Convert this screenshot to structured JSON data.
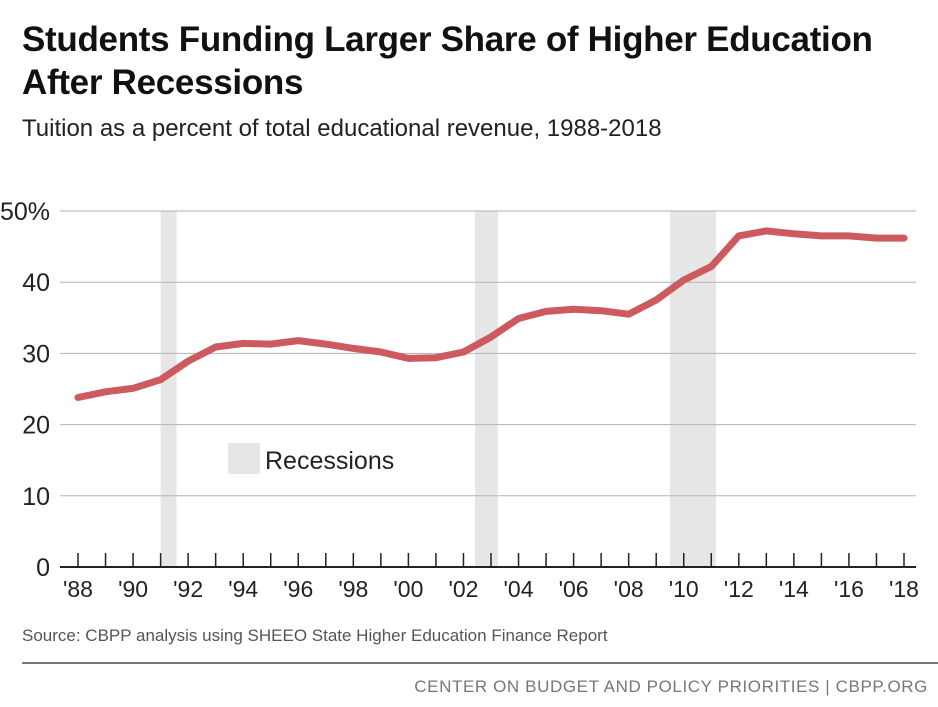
{
  "title": "Students Funding Larger Share of Higher Education After Recessions",
  "subtitle": "Tuition as a percent of total educational revenue, 1988-2018",
  "source": "Source: CBPP analysis using SHEEO State Higher Education Finance Report",
  "footer": "CENTER ON BUDGET AND POLICY PRIORITIES | CBPP.ORG",
  "colors": {
    "line": "#cc5a5e",
    "recession": "#e6e6e6",
    "grid": "#b3b3b3",
    "axis": "#222222"
  },
  "chart_data": {
    "type": "line",
    "title": "Students Funding Larger Share of Higher Education After Recessions",
    "subtitle": "Tuition as a percent of total educational revenue, 1988-2018",
    "x": [
      1988,
      1989,
      1990,
      1991,
      1992,
      1993,
      1994,
      1995,
      1996,
      1997,
      1998,
      1999,
      2000,
      2001,
      2002,
      2003,
      2004,
      2005,
      2006,
      2007,
      2008,
      2009,
      2010,
      2011,
      2012,
      2013,
      2014,
      2015,
      2016,
      2017,
      2018
    ],
    "series": [
      {
        "values": [
          23.8,
          24.6,
          25.1,
          26.3,
          28.9,
          30.9,
          31.4,
          31.3,
          31.8,
          31.3,
          30.7,
          30.2,
          29.3,
          29.4,
          30.2,
          32.3,
          34.9,
          35.9,
          36.2,
          36.0,
          35.5,
          37.5,
          40.3,
          42.2,
          46.5,
          47.2,
          46.8,
          46.5,
          46.5,
          46.2,
          46.2
        ]
      }
    ],
    "xlim": [
      1988,
      2018
    ],
    "ylim": [
      0,
      50
    ],
    "y_ticks": [
      0,
      10,
      20,
      30,
      40,
      50
    ],
    "y_tick_labels": [
      "0",
      "10",
      "20",
      "30",
      "40",
      "50%"
    ],
    "x_ticks": [
      1988,
      1990,
      1992,
      1994,
      1996,
      1998,
      2000,
      2002,
      2004,
      2006,
      2008,
      2010,
      2012,
      2014,
      2016,
      2018
    ],
    "x_tick_labels": [
      "'88",
      "'90",
      "'92",
      "'94",
      "'96",
      "'98",
      "'00",
      "'02",
      "'04",
      "'06",
      "'08",
      "'10",
      "'12",
      "'14",
      "'16",
      "'18"
    ],
    "recessions": [
      {
        "start": 1991.0,
        "end": 1991.58
      },
      {
        "start": 2002.42,
        "end": 2003.25
      },
      {
        "start": 2009.5,
        "end": 2011.17
      }
    ],
    "legend": {
      "label": "Recessions",
      "placement": "center-left"
    },
    "grid": true
  }
}
